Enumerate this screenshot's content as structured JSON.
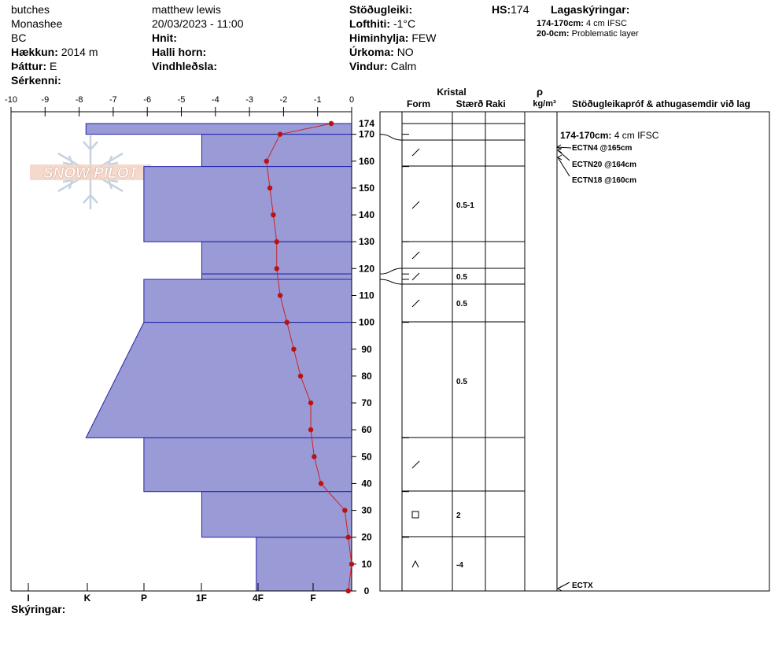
{
  "header": {
    "col1": [
      "butches",
      "Monashee",
      "BC"
    ],
    "elevation_label": "Hækkun:",
    "elevation_value": "2014 m",
    "aspect_label": "Þáttur:",
    "aspect_value": "E",
    "features_label": "Sérkenni:",
    "observer": "matthew lewis",
    "datetime": "20/03/2023 - 11:00",
    "coords_label": "Hnit:",
    "slope_label": "Halli horn:",
    "wind_loading_label": "Vindhleðsla:",
    "stability_label": "Stöðugleiki:",
    "air_temp_label": "Lofthiti:",
    "air_temp_value": "-1°C",
    "sky_label": "Himinhylja:",
    "sky_value": "FEW",
    "precip_label": "Úrkoma:",
    "precip_value": "NO",
    "wind_label": "Vindur:",
    "wind_value": "Calm",
    "hs_label": "HS:",
    "hs_value": "174",
    "layer_desc_label": "Lagaskýringar:",
    "layer_notes": [
      {
        "range": "174-170cm:",
        "text": "4 cm IFSC"
      },
      {
        "range": "20-0cm:",
        "text": "Problematic layer"
      }
    ]
  },
  "watermark": "SNOW PILOT",
  "legend_label": "Skýringar:",
  "columns": {
    "crystal_label": "Kristal",
    "form_label": "Form",
    "size_label": "Stærð",
    "moisture_label": "Raki",
    "density_symbol": "ρ",
    "density_unit": "kg/m³",
    "tests_label": "Stöðugleikapróf & athugasemdir við lag"
  },
  "colors": {
    "hardness_fill": "#9a9ad6",
    "hardness_stroke": "#2222aa",
    "temp_line": "#cc2222",
    "temp_marker": "#bb1111"
  },
  "chart_data": {
    "type": "line",
    "temp_axis": {
      "min": -10,
      "max": 0,
      "ticks": [
        -10,
        -9,
        -8,
        -7,
        -6,
        -5,
        -4,
        -3,
        -2,
        -1,
        0
      ]
    },
    "height_axis": {
      "min": 0,
      "max": 174,
      "ticks": [
        0,
        10,
        20,
        30,
        40,
        50,
        60,
        70,
        80,
        90,
        100,
        110,
        120,
        130,
        140,
        150,
        160,
        170
      ],
      "top_label": 174
    },
    "hardness_labels": [
      "I",
      "K",
      "P",
      "1F",
      "4F",
      "F"
    ],
    "temperature_profile": [
      {
        "h": 174,
        "t": -0.6
      },
      {
        "h": 170,
        "t": -2.1
      },
      {
        "h": 160,
        "t": -2.5
      },
      {
        "h": 150,
        "t": -2.4
      },
      {
        "h": 140,
        "t": -2.3
      },
      {
        "h": 130,
        "t": -2.2
      },
      {
        "h": 120,
        "t": -2.2
      },
      {
        "h": 110,
        "t": -2.1
      },
      {
        "h": 100,
        "t": -1.9
      },
      {
        "h": 90,
        "t": -1.7
      },
      {
        "h": 80,
        "t": -1.5
      },
      {
        "h": 70,
        "t": -1.2
      },
      {
        "h": 60,
        "t": -1.2
      },
      {
        "h": 50,
        "t": -1.1
      },
      {
        "h": 40,
        "t": -0.9
      },
      {
        "h": 30,
        "t": -0.2
      },
      {
        "h": 20,
        "t": -0.1
      },
      {
        "h": 10,
        "t": 0.0
      },
      {
        "h": 0,
        "t": -0.1
      }
    ],
    "hardness_profile": [
      {
        "top": 174,
        "bottom": 170,
        "hardness": "K",
        "width": 7.8
      },
      {
        "top": 170,
        "bottom": 158,
        "hardness": "1F",
        "width": 4.4
      },
      {
        "top": 158,
        "bottom": 130,
        "hardness": "P",
        "width": 6.1
      },
      {
        "top": 130,
        "bottom": 118,
        "hardness": "1F",
        "width": 4.4
      },
      {
        "top": 118,
        "bottom": 116,
        "hardness": "1F",
        "width": 4.4
      },
      {
        "top": 116,
        "bottom": 100,
        "hardness": "P",
        "width": 6.1
      },
      {
        "top": 100,
        "bottom": 57,
        "hardness": "P-K",
        "width_top": 6.1,
        "width_bottom": 7.8
      },
      {
        "top": 57,
        "bottom": 37,
        "hardness": "P",
        "width": 6.1
      },
      {
        "top": 37,
        "bottom": 20,
        "hardness": "1F",
        "width": 4.4
      },
      {
        "top": 20,
        "bottom": 0,
        "hardness": "4F",
        "width": 2.8
      }
    ],
    "layer_boundaries": [
      174,
      170,
      158,
      130,
      118,
      116,
      100,
      57,
      37,
      20,
      0
    ],
    "grain_layers": [
      {
        "center": 163,
        "form": "/",
        "size": ""
      },
      {
        "center": 144,
        "form": "/",
        "size": "0.5-1"
      },
      {
        "center": 124,
        "form": "/",
        "size": ""
      },
      {
        "center": 117,
        "form": "/",
        "size": "0.5"
      },
      {
        "center": 107,
        "form": "/",
        "size": "0.5"
      },
      {
        "center": 78,
        "form": "",
        "size": "0.5"
      },
      {
        "center": 47,
        "form": "/",
        "size": ""
      },
      {
        "center": 29,
        "form": "□",
        "size": "2"
      },
      {
        "center": 10,
        "form": "^",
        "size": "-4"
      }
    ],
    "tests": [
      {
        "h": 165,
        "label": "ECTN4 @165cm"
      },
      {
        "h": 164,
        "label": "ECTN20 @164cm"
      },
      {
        "h": 160,
        "label": "ECTN18 @160cm"
      },
      {
        "h": 0,
        "label": "ECTX"
      }
    ],
    "layer_comments": [
      {
        "h": 172,
        "range": "174-170cm:",
        "text": "4 cm IFSC"
      }
    ]
  }
}
